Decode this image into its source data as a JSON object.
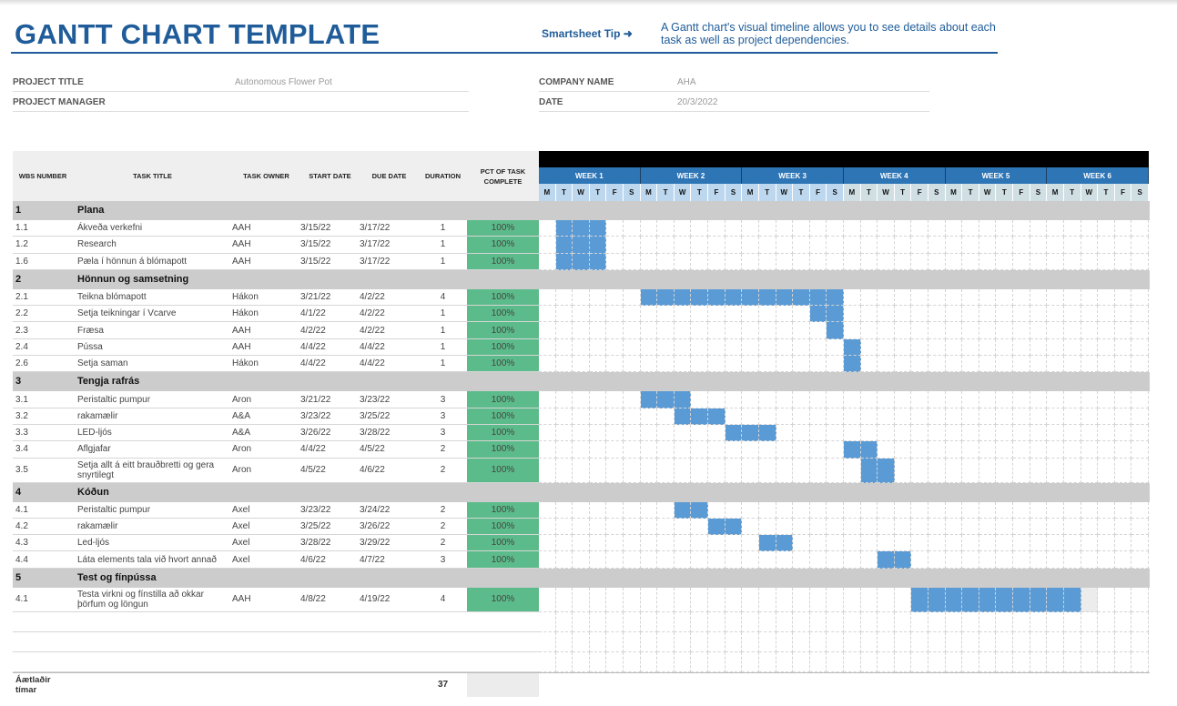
{
  "header": {
    "title": "GANTT CHART TEMPLATE",
    "tip_label": "Smartsheet Tip ➜",
    "tip_text": "A Gantt chart's visual timeline allows you to see details about each task as well as project dependencies."
  },
  "project": {
    "title_label": "PROJECT TITLE",
    "title_value": "Autonomous Flower Pot",
    "manager_label": "PROJECT MANAGER",
    "manager_value": "",
    "company_label": "COMPANY NAME",
    "company_value": "AHA",
    "date_label": "DATE",
    "date_value": "20/3/2022"
  },
  "columns": [
    "WBS NUMBER",
    "TASK TITLE",
    "TASK OWNER",
    "START DATE",
    "DUE DATE",
    "DURATION",
    "PCT OF TASK COMPLETE"
  ],
  "weeks": [
    "WEEK 1",
    "WEEK 2",
    "WEEK 3",
    "WEEK 4",
    "WEEK 5",
    "WEEK 6"
  ],
  "days": [
    "M",
    "T",
    "W",
    "T",
    "F",
    "S"
  ],
  "colors": {
    "bar": "#5b9bd5",
    "complete": "#5cbb8a",
    "brand": "#1f5c99"
  },
  "rows": [
    {
      "type": "cat",
      "wbs": "1",
      "title": "Plana"
    },
    {
      "type": "task",
      "wbs": "1.1",
      "title": "Ákveða verkefni",
      "owner": "AAH",
      "start": "3/15/22",
      "due": "3/17/22",
      "duration": "1",
      "pct": "100%",
      "bar_days": [
        1,
        3
      ]
    },
    {
      "type": "task",
      "wbs": "1.2",
      "title": "Research",
      "owner": "AAH",
      "start": "3/15/22",
      "due": "3/17/22",
      "duration": "1",
      "pct": "100%",
      "bar_days": [
        1,
        3
      ]
    },
    {
      "type": "task",
      "wbs": "1.6",
      "title": "Pæla í hönnun á blómapott",
      "owner": "AAH",
      "start": "3/15/22",
      "due": "3/17/22",
      "duration": "1",
      "pct": "100%",
      "bar_days": [
        1,
        3
      ]
    },
    {
      "type": "cat",
      "wbs": "2",
      "title": "Hönnun og samsetning"
    },
    {
      "type": "task",
      "wbs": "2.1",
      "title": "Teikna blómapott",
      "owner": "Hákon",
      "start": "3/21/22",
      "due": "4/2/22",
      "duration": "4",
      "pct": "100%",
      "bar_days": [
        6,
        17
      ]
    },
    {
      "type": "task",
      "wbs": "2.2",
      "title": "Setja teikningar í Vcarve",
      "owner": "Hákon",
      "start": "4/1/22",
      "due": "4/2/22",
      "duration": "1",
      "pct": "100%",
      "bar_days": [
        16,
        17
      ]
    },
    {
      "type": "task",
      "wbs": "2.3",
      "title": "Fræsa",
      "owner": "AAH",
      "start": "4/2/22",
      "due": "4/2/22",
      "duration": "1",
      "pct": "100%",
      "bar_days": [
        17,
        17
      ]
    },
    {
      "type": "task",
      "wbs": "2.4",
      "title": "Pússa",
      "owner": "AAH",
      "start": "4/4/22",
      "due": "4/4/22",
      "duration": "1",
      "pct": "100%",
      "bar_days": [
        18,
        18
      ]
    },
    {
      "type": "task",
      "wbs": "2.6",
      "title": "Setja saman",
      "owner": "Hákon",
      "start": "4/4/22",
      "due": "4/4/22",
      "duration": "1",
      "pct": "100%",
      "bar_days": [
        18,
        18
      ]
    },
    {
      "type": "cat",
      "wbs": "3",
      "title": "Tengja rafrás"
    },
    {
      "type": "task",
      "wbs": "3.1",
      "title": "Peristaltic pumpur",
      "owner": "Aron",
      "start": "3/21/22",
      "due": "3/23/22",
      "duration": "3",
      "pct": "100%",
      "bar_days": [
        6,
        8
      ]
    },
    {
      "type": "task",
      "wbs": "3.2",
      "title": "rakamælir",
      "owner": "A&A",
      "start": "3/23/22",
      "due": "3/25/22",
      "duration": "3",
      "pct": "100%",
      "bar_days": [
        8,
        10
      ]
    },
    {
      "type": "task",
      "wbs": "3.3",
      "title": "LED-ljós",
      "owner": "A&A",
      "start": "3/26/22",
      "due": "3/28/22",
      "duration": "3",
      "pct": "100%",
      "bar_days": [
        11,
        13
      ]
    },
    {
      "type": "task",
      "wbs": "3.4",
      "title": "Aflgjafar",
      "owner": "Aron",
      "start": "4/4/22",
      "due": "4/5/22",
      "duration": "2",
      "pct": "100%",
      "bar_days": [
        18,
        19
      ]
    },
    {
      "type": "task",
      "tall": true,
      "wbs": "3.5",
      "title": "Setja allt á eitt brauðbretti og gera snyrtilegt",
      "owner": "Aron",
      "start": "4/5/22",
      "due": "4/6/22",
      "duration": "2",
      "pct": "100%",
      "bar_days": [
        19,
        20
      ]
    },
    {
      "type": "cat",
      "wbs": "4",
      "title": "Kóðun"
    },
    {
      "type": "task",
      "wbs": "4.1",
      "title": "Peristaltic pumpur",
      "owner": "Axel",
      "start": "3/23/22",
      "due": "3/24/22",
      "duration": "2",
      "pct": "100%",
      "bar_days": [
        8,
        9
      ]
    },
    {
      "type": "task",
      "wbs": "4.2",
      "title": "rakamælir",
      "owner": "Axel",
      "start": "3/25/22",
      "due": "3/26/22",
      "duration": "2",
      "pct": "100%",
      "bar_days": [
        10,
        11
      ]
    },
    {
      "type": "task",
      "wbs": "4.3",
      "title": "Led-ljós",
      "owner": "Axel",
      "start": "3/28/22",
      "due": "3/29/22",
      "duration": "2",
      "pct": "100%",
      "bar_days": [
        13,
        14
      ]
    },
    {
      "type": "task",
      "wbs": "4.4",
      "title": "Láta elements tala við hvort annað",
      "owner": "Axel",
      "start": "4/6/22",
      "due": "4/7/22",
      "duration": "3",
      "pct": "100%",
      "bar_days": [
        20,
        21
      ]
    },
    {
      "type": "cat",
      "wbs": "5",
      "title": "Test og fínpússa"
    },
    {
      "type": "task",
      "tall": true,
      "wbs": "4.1",
      "title": "Testa virkni og fínstilla að okkar þörfum og löngun",
      "owner": "AAH",
      "start": "4/8/22",
      "due": "4/19/22",
      "duration": "4",
      "pct": "100%",
      "bar_days": [
        22,
        31
      ],
      "pending_days": [
        32,
        32
      ]
    },
    {
      "type": "empty"
    },
    {
      "type": "empty"
    },
    {
      "type": "empty"
    }
  ],
  "total": {
    "label": "Áætlaðir tímar",
    "value": "37"
  }
}
